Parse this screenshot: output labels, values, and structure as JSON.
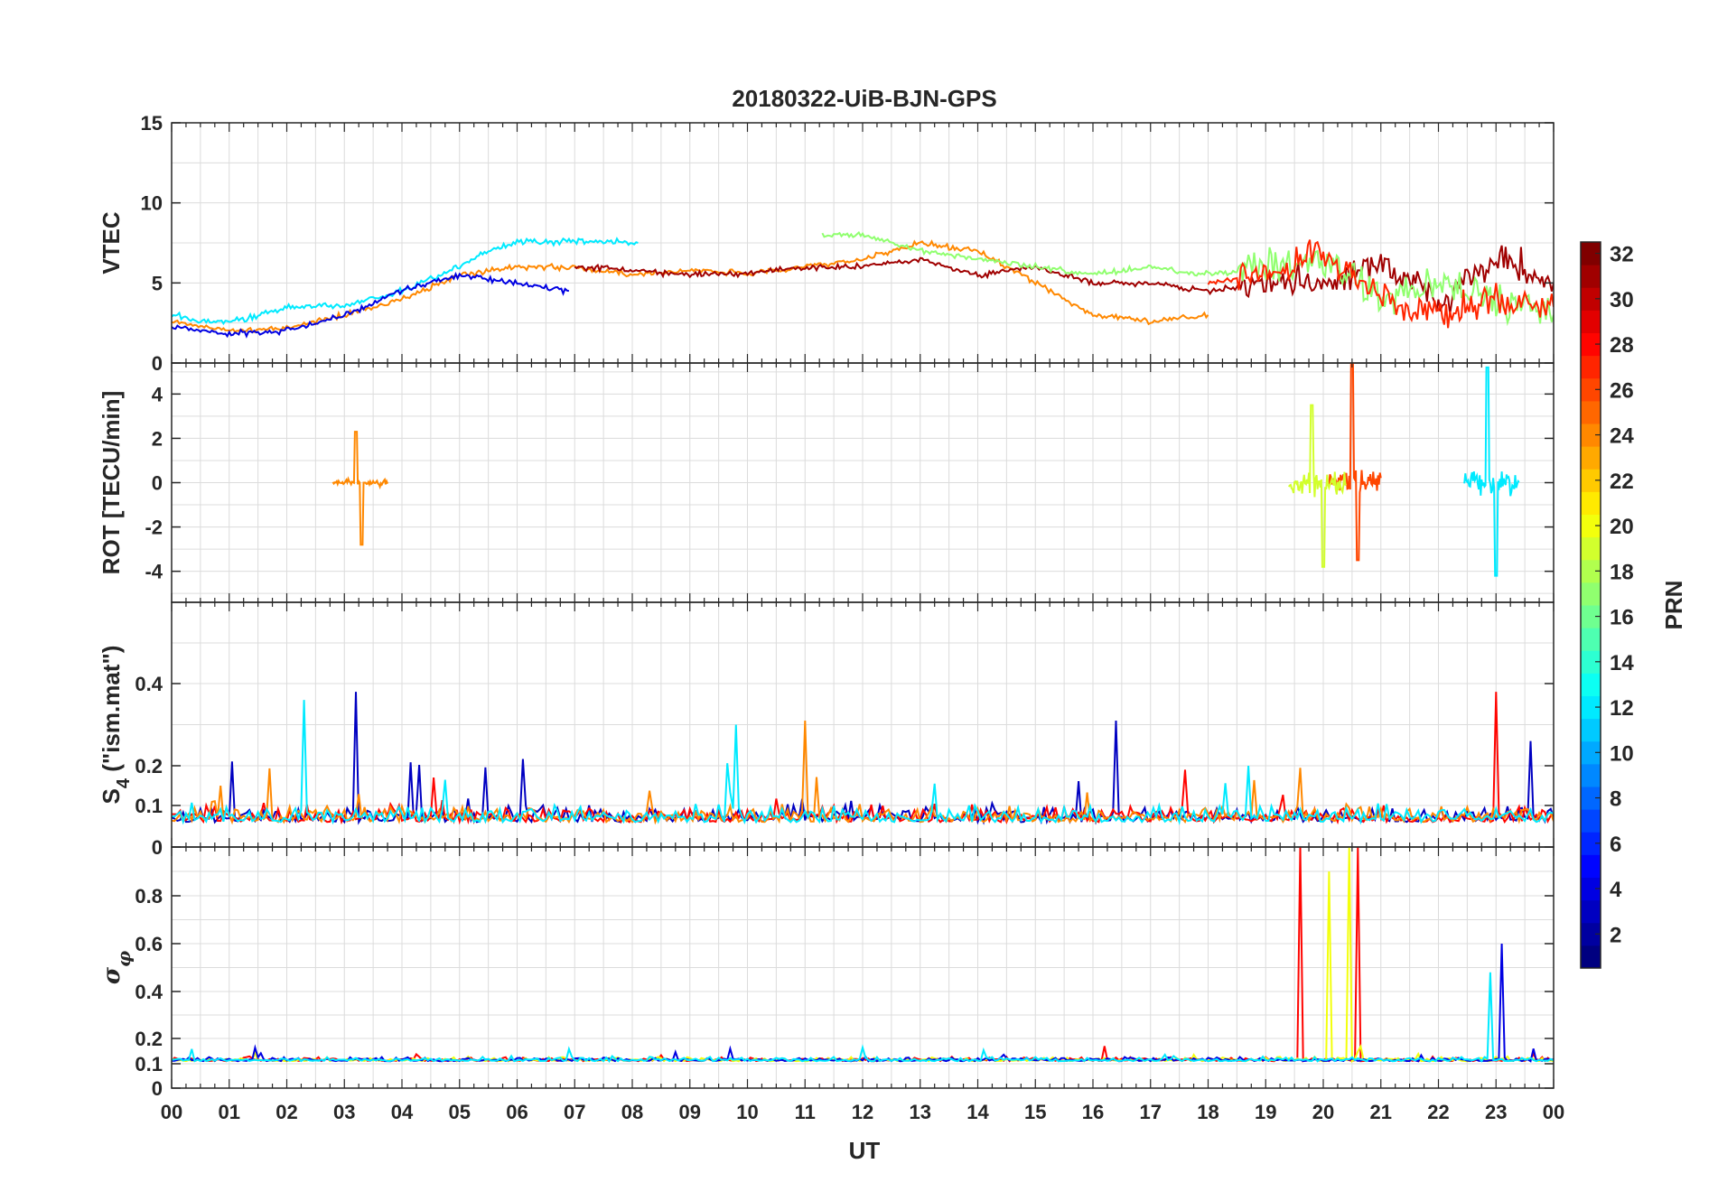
{
  "chart_data": {
    "type": "line",
    "title": "20180322-UiB-BJN-GPS",
    "xlabel": "UT",
    "x_ticks": [
      "00",
      "01",
      "02",
      "03",
      "04",
      "05",
      "06",
      "07",
      "08",
      "09",
      "10",
      "11",
      "12",
      "13",
      "14",
      "15",
      "16",
      "17",
      "18",
      "19",
      "20",
      "21",
      "22",
      "23",
      "00"
    ],
    "xlim": [
      0,
      24
    ],
    "colorbar": {
      "label": "PRN",
      "range": [
        1,
        32
      ],
      "ticks": [
        "2",
        "4",
        "6",
        "8",
        "10",
        "12",
        "14",
        "16",
        "18",
        "20",
        "22",
        "24",
        "26",
        "28",
        "30",
        "32"
      ],
      "colormap": "jet"
    },
    "panels": [
      {
        "ylabel": "VTEC",
        "ylim": [
          0,
          15
        ],
        "yticks": [
          "0",
          "5",
          "10",
          "15"
        ],
        "grid": true,
        "series_summary": [
          {
            "prn": 12,
            "x": [
              0.0,
              0.5,
              1,
              2,
              3,
              4,
              5,
              5.5,
              6,
              7,
              8.1
            ],
            "y": [
              3,
              2.6,
              2.5,
              3.5,
              3.6,
              4.5,
              6,
              7,
              7.6,
              7.6,
              7.5
            ]
          },
          {
            "prn": 24,
            "x": [
              0.0,
              1,
              2,
              3,
              4,
              5,
              6,
              7,
              8,
              9,
              10,
              11,
              12,
              13,
              14,
              15,
              16,
              17,
              18
            ],
            "y": [
              2.6,
              2,
              2.2,
              3,
              4,
              5.5,
              6,
              6,
              5.5,
              5.8,
              5.6,
              6,
              6.5,
              7.5,
              7,
              5,
              3,
              2.6,
              3
            ]
          },
          {
            "prn": 4,
            "x": [
              0.0,
              1,
              2,
              3,
              4,
              5,
              6,
              6.9
            ],
            "y": [
              2.3,
              1.8,
              2,
              3,
              4.5,
              5.5,
              5,
              4.5
            ]
          },
          {
            "prn": 31,
            "x": [
              7,
              8,
              9,
              10,
              11,
              12,
              13,
              14,
              15,
              16,
              17,
              18,
              19,
              20,
              21,
              22,
              23,
              24
            ],
            "y": [
              6,
              5.8,
              5.5,
              5.6,
              6,
              6,
              6.5,
              5.5,
              6,
              5,
              5,
              4.5,
              5,
              5,
              6,
              4,
              6.5,
              5
            ]
          },
          {
            "prn": 17,
            "x": [
              11.3,
              12,
              13,
              14,
              15,
              16,
              17,
              18,
              19,
              20,
              21,
              22,
              23,
              24
            ],
            "y": [
              8,
              8,
              7,
              6.5,
              6,
              5.5,
              6,
              5.5,
              6,
              6.5,
              4,
              5,
              4,
              3
            ]
          },
          {
            "prn": 27,
            "x": [
              18,
              19,
              20,
              21,
              22,
              23,
              24
            ],
            "y": [
              5,
              5.5,
              7,
              4,
              3,
              4,
              3.5
            ]
          }
        ]
      },
      {
        "ylabel": "ROT [TECU/min]",
        "ylim": [
          -5.4,
          5.4
        ],
        "yticks": [
          "-4",
          "-2",
          "0",
          "2",
          "4"
        ],
        "grid": true,
        "series_summary": [
          {
            "prn": 24,
            "x": [
              3.2,
              3.3,
              3.35
            ],
            "y": [
              2.3,
              -2.8,
              0
            ]
          },
          {
            "prn": 26,
            "x": [
              20.5,
              20.6
            ],
            "y": [
              5.4,
              -3.5
            ]
          },
          {
            "prn": 19,
            "x": [
              19.8,
              20.0
            ],
            "y": [
              3.5,
              -3.8
            ]
          },
          {
            "prn": 12,
            "x": [
              22.85,
              23.0
            ],
            "y": [
              5.2,
              -4.2
            ]
          }
        ]
      },
      {
        "ylabel": "S4 (\"ism.mat\")",
        "ylim": [
          0,
          0.6
        ],
        "yticks": [
          "0",
          "0.1",
          "0.2",
          "0.4"
        ],
        "grid": true,
        "series_summary": [
          {
            "prn": 3,
            "x": [
              3.2,
              16.4,
              23.6
            ],
            "y": [
              0.38,
              0.31,
              0.26
            ]
          },
          {
            "prn": 28,
            "x": [
              23.0
            ],
            "y": [
              0.38
            ]
          },
          {
            "prn": 24,
            "x": [
              11.0
            ],
            "y": [
              0.31
            ]
          },
          {
            "prn": 12,
            "x": [
              2.3,
              9.8
            ],
            "y": [
              0.36,
              0.3
            ]
          }
        ]
      },
      {
        "ylabel": "σφ",
        "ylim": [
          0,
          1.0
        ],
        "yticks": [
          "0",
          "0.1",
          "0.2",
          "0.4",
          "0.6",
          "0.8"
        ],
        "grid": true,
        "series_summary": [
          {
            "prn": 28,
            "x": [
              19.6,
              20.6
            ],
            "y": [
              1.0,
              1.0
            ]
          },
          {
            "prn": 20,
            "x": [
              20.1,
              20.45
            ],
            "y": [
              0.9,
              1.0
            ]
          },
          {
            "prn": 4,
            "x": [
              23.1
            ],
            "y": [
              0.6
            ]
          },
          {
            "prn": 12,
            "x": [
              22.9
            ],
            "y": [
              0.48
            ]
          }
        ]
      }
    ]
  }
}
